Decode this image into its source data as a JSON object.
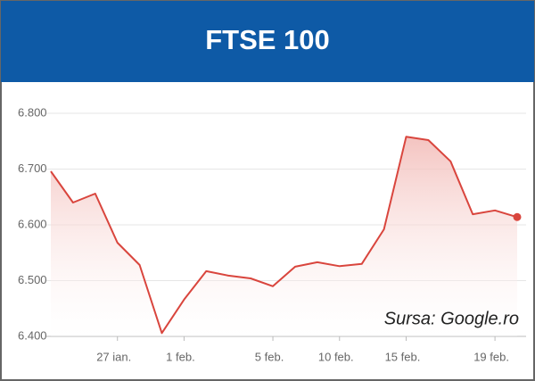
{
  "chart_data": {
    "type": "line",
    "title": "FTSE 100",
    "annotation": "Sursa: Google.ro",
    "categories": [
      null,
      null,
      null,
      "27 ian.",
      null,
      null,
      "1 feb.",
      null,
      null,
      null,
      "5 feb.",
      null,
      null,
      "10 feb.",
      null,
      null,
      "15 feb.",
      null,
      null,
      null,
      "19 feb.",
      null
    ],
    "values": [
      6696,
      6640,
      6656,
      6568,
      6528,
      6406,
      6466,
      6517,
      6509,
      6504,
      6490,
      6525,
      6533,
      6526,
      6530,
      6592,
      6758,
      6752,
      6714,
      6619,
      6626,
      6614
    ],
    "color": "#d9453d",
    "ylim": [
      6400,
      6800
    ],
    "yticks": [
      {
        "value": 6400,
        "label": "6.400"
      },
      {
        "value": 6500,
        "label": "6.500"
      },
      {
        "value": 6600,
        "label": "6.600"
      },
      {
        "value": 6700,
        "label": "6.700"
      },
      {
        "value": 6800,
        "label": "6.800"
      }
    ],
    "grid": true
  }
}
